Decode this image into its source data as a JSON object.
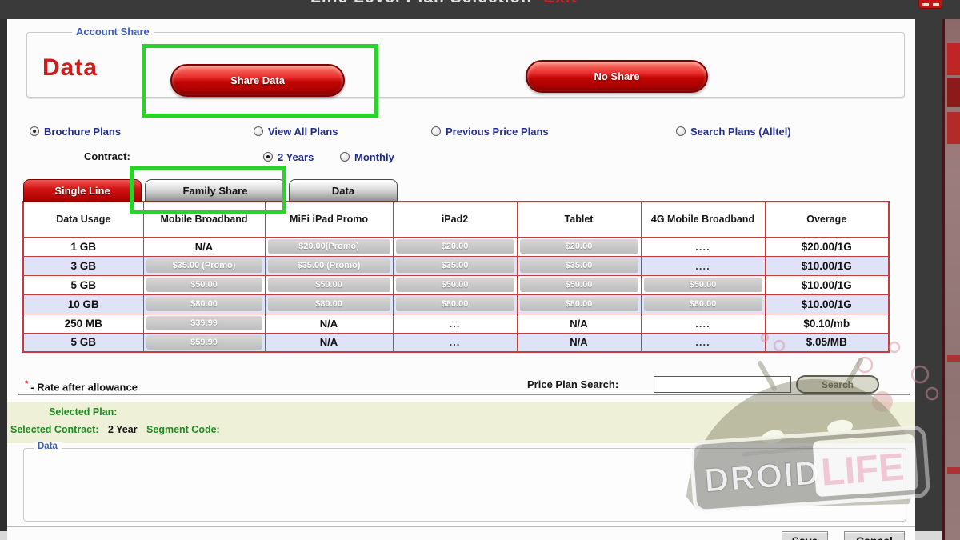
{
  "titlebar": {
    "title": "Line Level Plan Selection",
    "title_accent": "Exit"
  },
  "account_share": {
    "legend": "Account Share",
    "category_label": "Data",
    "share_button": "Share Data",
    "no_share_button": "No Share"
  },
  "plan_filters": {
    "options": [
      {
        "label": "Brochure Plans",
        "selected": true
      },
      {
        "label": "View All Plans",
        "selected": false
      },
      {
        "label": "Previous Price Plans",
        "selected": false
      },
      {
        "label": "Search Plans (Alltel)",
        "selected": false
      }
    ],
    "contract_label": "Contract:",
    "contract_options": [
      {
        "label": "2 Years",
        "selected": true
      },
      {
        "label": "Monthly",
        "selected": false
      }
    ]
  },
  "tabs": [
    {
      "label": "Single Line",
      "active": true
    },
    {
      "label": "Family Share",
      "active": false,
      "highlighted": true
    },
    {
      "label": "Data",
      "active": false
    }
  ],
  "table": {
    "columns": [
      "Data Usage",
      "Mobile Broadband",
      "MiFi iPad Promo",
      "iPad2",
      "Tablet",
      "4G Mobile Broadband",
      "Overage"
    ],
    "rows": [
      {
        "cells": [
          {
            "t": "1 GB",
            "k": "usage"
          },
          {
            "t": "N/A",
            "k": "na"
          },
          {
            "t": "$20.00(Promo)",
            "k": "pill"
          },
          {
            "t": "$20.00",
            "k": "pill"
          },
          {
            "t": "$20.00",
            "k": "pill"
          },
          {
            "t": "....",
            "k": "dots"
          },
          {
            "t": "$20.00/1G",
            "k": "overage"
          }
        ]
      },
      {
        "cells": [
          {
            "t": "3 GB",
            "k": "usage"
          },
          {
            "t": "$35.00 (Promo)",
            "k": "pill"
          },
          {
            "t": "$35.00 (Promo)",
            "k": "pill"
          },
          {
            "t": "$35.00",
            "k": "pill"
          },
          {
            "t": "$35.00",
            "k": "pill"
          },
          {
            "t": "....",
            "k": "dots"
          },
          {
            "t": "$10.00/1G",
            "k": "overage"
          }
        ]
      },
      {
        "cells": [
          {
            "t": "5 GB",
            "k": "usage"
          },
          {
            "t": "$50.00",
            "k": "pill"
          },
          {
            "t": "$50.00",
            "k": "pill"
          },
          {
            "t": "$50.00",
            "k": "pill"
          },
          {
            "t": "$50.00",
            "k": "pill"
          },
          {
            "t": "$50.00",
            "k": "pill"
          },
          {
            "t": "$10.00/1G",
            "k": "overage"
          }
        ]
      },
      {
        "cells": [
          {
            "t": "10 GB",
            "k": "usage"
          },
          {
            "t": "$80.00",
            "k": "pill"
          },
          {
            "t": "$80.00",
            "k": "pill"
          },
          {
            "t": "$80.00",
            "k": "pill"
          },
          {
            "t": "$80.00",
            "k": "pill"
          },
          {
            "t": "$80.00",
            "k": "pill"
          },
          {
            "t": "$10.00/1G",
            "k": "overage"
          }
        ]
      },
      {
        "cells": [
          {
            "t": "250 MB",
            "k": "usage"
          },
          {
            "t": "$39.99",
            "k": "pill"
          },
          {
            "t": "N/A",
            "k": "na"
          },
          {
            "t": "...",
            "k": "dots"
          },
          {
            "t": "N/A",
            "k": "na"
          },
          {
            "t": "....",
            "k": "dots"
          },
          {
            "t": "$0.10/mb",
            "k": "overage"
          }
        ]
      },
      {
        "cells": [
          {
            "t": "5 GB",
            "k": "usage"
          },
          {
            "t": "$59.99",
            "k": "pill"
          },
          {
            "t": "N/A",
            "k": "na"
          },
          {
            "t": "...",
            "k": "dots"
          },
          {
            "t": "N/A",
            "k": "na"
          },
          {
            "t": "....",
            "k": "dots"
          },
          {
            "t": "$.05/MB",
            "k": "overage"
          }
        ]
      }
    ]
  },
  "footnote": {
    "mark": "*",
    "text": "- Rate after allowance"
  },
  "plan_search": {
    "label": "Price Plan Search:",
    "value": "",
    "button": "Search"
  },
  "selection": {
    "plan_label": "Selected Plan:",
    "contract_label": "Selected Contract:",
    "contract_value": "2 Year",
    "segment_label": "Segment Code:"
  },
  "details_fieldset": {
    "legend": "Data"
  },
  "actions": {
    "save": "Save",
    "cancel": "Cancel"
  },
  "watermark": {
    "word1": "DROID",
    "word2": "LIFE"
  },
  "colors": {
    "accent_red": "#cf1d1d",
    "button_red": "#c30505",
    "highlight_green": "#2bd22b",
    "row_alt": "#dfe3f8",
    "table_border": "#c63c3c",
    "selected_text_green": "#1f8a1f",
    "legend_blue": "#3b5cba",
    "titlebar_gray": "#3a3a3a"
  }
}
